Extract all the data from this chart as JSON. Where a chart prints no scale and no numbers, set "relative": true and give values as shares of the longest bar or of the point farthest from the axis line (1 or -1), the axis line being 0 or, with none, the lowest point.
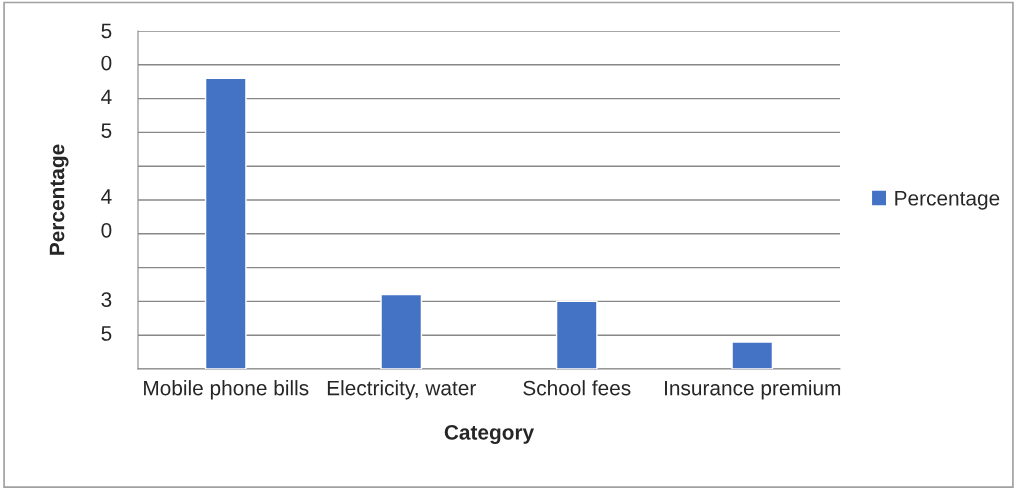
{
  "chart_data": {
    "type": "bar",
    "xlabel": "Category",
    "ylabel": "Percentage",
    "categories": [
      "Mobile phone bills",
      "Electricity, water",
      "School fees",
      "Insurance premium"
    ],
    "series": [
      {
        "name": "Percentage",
        "color": "#4472c4",
        "values": [
          1,
          0.256,
          0.233,
          0.093
        ]
      }
    ],
    "relative": true,
    "annotations": [
      "5",
      "0",
      "4",
      "5",
      "4",
      "0",
      "3",
      "5"
    ],
    "grid": "y",
    "legend": "right"
  }
}
